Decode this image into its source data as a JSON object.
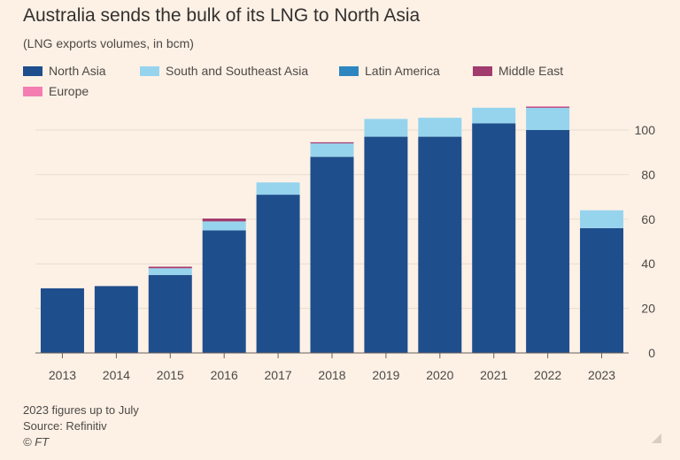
{
  "chart_data": {
    "type": "bar",
    "stacked": true,
    "title": "Australia sends the bulk of its LNG to North Asia",
    "subtitle": "(LNG exports volumes, in bcm)",
    "categories": [
      "2013",
      "2014",
      "2015",
      "2016",
      "2017",
      "2018",
      "2019",
      "2020",
      "2021",
      "2022",
      "2023"
    ],
    "series": [
      {
        "name": "North Asia",
        "color": "#1f4e8c",
        "values": [
          29,
          30,
          35,
          55,
          71,
          88,
          97,
          97,
          103,
          100,
          56
        ]
      },
      {
        "name": "South and Southeast Asia",
        "color": "#96d4ee",
        "values": [
          0,
          0,
          3,
          4,
          5.5,
          6,
          8,
          8.5,
          7,
          10,
          8
        ]
      },
      {
        "name": "Latin America",
        "color": "#2e86c1",
        "values": [
          0,
          0,
          0,
          0,
          0,
          0,
          0,
          0,
          0,
          0,
          0
        ]
      },
      {
        "name": "Middle East",
        "color": "#a23b6e",
        "values": [
          0,
          0,
          0.7,
          1.3,
          0,
          0.5,
          0,
          0,
          0,
          0.4,
          0
        ]
      },
      {
        "name": "Europe",
        "color": "#f47eb1",
        "values": [
          0,
          0,
          0,
          0,
          0,
          0,
          0,
          0,
          0,
          0.3,
          0
        ]
      }
    ],
    "y_ticks": [
      0,
      20,
      40,
      60,
      80,
      100
    ],
    "ylim": [
      0,
      115
    ],
    "y_axis_side": "right",
    "grid": true,
    "legend_position": "top-left"
  },
  "notes": {
    "footnote": "2023 figures up to July",
    "source": "Source: Refinitiv",
    "credit": "© FT"
  },
  "colors": {
    "background": "#fdf1e6",
    "grid": "#e8dccf",
    "axis": "#66605c"
  }
}
